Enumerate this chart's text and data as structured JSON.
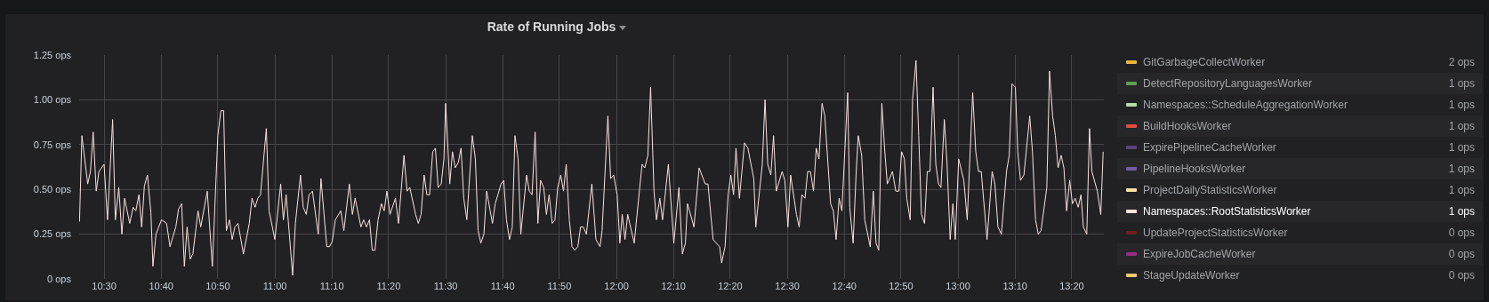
{
  "chart_data": {
    "type": "line",
    "title": "Rate of Running Jobs",
    "xlim": [
      10.427,
      13.427
    ],
    "xticks": [
      {
        "value": 10.5,
        "label": "10:30"
      },
      {
        "value": 10.667,
        "label": "10:40"
      },
      {
        "value": 10.833,
        "label": "10:50"
      },
      {
        "value": 11,
        "label": "11:00"
      },
      {
        "value": 11.167,
        "label": "11:10"
      },
      {
        "value": 11.333,
        "label": "11:20"
      },
      {
        "value": 11.5,
        "label": "11:30"
      },
      {
        "value": 11.667,
        "label": "11:40"
      },
      {
        "value": 11.833,
        "label": "11:50"
      },
      {
        "value": 12,
        "label": "12:00"
      },
      {
        "value": 12.167,
        "label": "12:10"
      },
      {
        "value": 12.333,
        "label": "12:20"
      },
      {
        "value": 12.5,
        "label": "12:30"
      },
      {
        "value": 12.667,
        "label": "12:40"
      },
      {
        "value": 12.833,
        "label": "12:50"
      },
      {
        "value": 13,
        "label": "13:00"
      },
      {
        "value": 13.167,
        "label": "13:10"
      },
      {
        "value": 13.333,
        "label": "13:20"
      }
    ],
    "ylim": [
      0,
      1.25
    ],
    "yticks": [
      {
        "value": 0,
        "label": "0 ops"
      },
      {
        "value": 0.25,
        "label": "0.25 ops"
      },
      {
        "value": 0.5,
        "label": "0.50 ops"
      },
      {
        "value": 0.75,
        "label": "0.75 ops"
      },
      {
        "value": 1,
        "label": "1.00 ops"
      },
      {
        "value": 1.25,
        "label": "1.25 ops"
      }
    ],
    "grid": true,
    "legend": "right",
    "annotations": [
      "2 ops",
      "1 ops",
      "1 ops",
      "1 ops",
      "1 ops",
      "1 ops",
      "1 ops",
      "1 ops",
      "0 ops",
      "0 ops",
      "0 ops"
    ],
    "series": [
      {
        "name": "GitGarbageCollectWorker",
        "color": "#eab839"
      },
      {
        "name": "DetectRepositoryLanguagesWorker",
        "color": "#629e51"
      },
      {
        "name": "Namespaces::ScheduleAggregationWorker",
        "color": "#b7dbab"
      },
      {
        "name": "BuildHooksWorker",
        "color": "#e24d42"
      },
      {
        "name": "ExpirePipelineCacheWorker",
        "color": "#584477"
      },
      {
        "name": "PipelineHooksWorker",
        "color": "#705da0"
      },
      {
        "name": "ProjectDailyStatisticsWorker",
        "color": "#f9e2a2"
      },
      {
        "name": "Namespaces::RootStatisticsWorker",
        "color": "#fce2de",
        "x": [
          10.428,
          10.435,
          10.452,
          10.46,
          10.468,
          10.477,
          10.485,
          10.5,
          10.51,
          10.525,
          10.533,
          10.543,
          10.552,
          10.56,
          10.575,
          10.585,
          10.593,
          10.602,
          10.61,
          10.618,
          10.627,
          10.637,
          10.643,
          10.652,
          10.668,
          10.683,
          10.693,
          10.71,
          10.718,
          10.727,
          10.735,
          10.743,
          10.752,
          10.76,
          10.775,
          10.783,
          10.802,
          10.817,
          10.833,
          10.842,
          10.85,
          10.858,
          10.867,
          10.875,
          10.883,
          10.892,
          10.908,
          10.925,
          10.933,
          10.942,
          10.95,
          10.958,
          10.975,
          10.983,
          11,
          11.017,
          11.025,
          11.033,
          11.052,
          11.06,
          11.075,
          11.083,
          11.092,
          11.1,
          11.11,
          11.127,
          11.135,
          11.152,
          11.16,
          11.168,
          11.177,
          11.193,
          11.202,
          11.218,
          11.227,
          11.235,
          11.252,
          11.26,
          11.268,
          11.277,
          11.285,
          11.293,
          11.302,
          11.312,
          11.32,
          11.328,
          11.337,
          11.353,
          11.362,
          11.378,
          11.387,
          11.395,
          11.412,
          11.42,
          11.428,
          11.437,
          11.445,
          11.453,
          11.462,
          11.47,
          11.478,
          11.487,
          11.495,
          11.5,
          11.512,
          11.52,
          11.528,
          11.537,
          11.545,
          11.553,
          11.562,
          11.578,
          11.587,
          11.595,
          11.603,
          11.612,
          11.62,
          11.637,
          11.645,
          11.653,
          11.662,
          11.67,
          11.678,
          11.687,
          11.695,
          11.703,
          11.712,
          11.72,
          11.737,
          11.745,
          11.753,
          11.762,
          11.77,
          11.778,
          11.787,
          11.795,
          11.803,
          11.812,
          11.82,
          11.828,
          11.837,
          11.845,
          11.853,
          11.862,
          11.87,
          11.878,
          11.887,
          11.895,
          11.903,
          11.912,
          11.928,
          11.94,
          11.952,
          11.958,
          11.975,
          11.983,
          11.992,
          12.002,
          12.01,
          12.017,
          12.025,
          12.033,
          12.052,
          12.075,
          12.083,
          12.092,
          12.1,
          12.11,
          12.117,
          12.127,
          12.135,
          12.152,
          12.168,
          12.183,
          12.193,
          12.202,
          12.208,
          12.227,
          12.242,
          12.26,
          12.268,
          12.283,
          12.302,
          12.308,
          12.318,
          12.327,
          12.335,
          12.343,
          12.35,
          12.36,
          12.375,
          12.385,
          12.402,
          12.408,
          12.427,
          12.435,
          12.443,
          12.452,
          12.46,
          12.468,
          12.485,
          12.493,
          12.502,
          12.51,
          12.527,
          12.535,
          12.543,
          12.552,
          12.56,
          12.568,
          12.577,
          12.585,
          12.593,
          12.602,
          12.61,
          12.627,
          12.635,
          12.643,
          12.652,
          12.66,
          12.677,
          12.683,
          12.693,
          12.702,
          12.708,
          12.718,
          12.727,
          12.743,
          12.752,
          12.76,
          12.768,
          12.777,
          12.785,
          12.793,
          12.808,
          12.818,
          12.827,
          12.835,
          12.843,
          12.85,
          12.86,
          12.867,
          12.877,
          12.885,
          12.893,
          12.902,
          12.91,
          12.918,
          12.927,
          12.935,
          12.943,
          12.95,
          12.96,
          12.968,
          12.977,
          12.985,
          12.992,
          13.002,
          13.017,
          13.027,
          13.043,
          13.052,
          13.06,
          13.068,
          13.085,
          13.1,
          13.108,
          13.117,
          13.127,
          13.142,
          13.15,
          13.158,
          13.168,
          13.175,
          13.183,
          13.193,
          13.21,
          13.218,
          13.227,
          13.235,
          13.243,
          13.26,
          13.268,
          13.277,
          13.285,
          13.293,
          13.302,
          13.31,
          13.318,
          13.327,
          13.335,
          13.343,
          13.352,
          13.36,
          13.367,
          13.377,
          13.385,
          13.392,
          13.408,
          13.418,
          13.425
        ],
        "values": [
          0.32,
          0.8,
          0.53,
          0.6,
          0.82,
          0.49,
          0.6,
          0.64,
          0.33,
          0.89,
          0.33,
          0.51,
          0.25,
          0.45,
          0.31,
          0.4,
          0.38,
          0.47,
          0.29,
          0.52,
          0.58,
          0.37,
          0.07,
          0.25,
          0.33,
          0.31,
          0.18,
          0.29,
          0.39,
          0.42,
          0.07,
          0.29,
          0.11,
          0.14,
          0.38,
          0.29,
          0.49,
          0.07,
          0.8,
          0.94,
          0.94,
          0.27,
          0.33,
          0.22,
          0.29,
          0.31,
          0.14,
          0.31,
          0.45,
          0.4,
          0.45,
          0.47,
          0.84,
          0.38,
          0.22,
          0.53,
          0.33,
          0.47,
          0.02,
          0.31,
          0.58,
          0.4,
          0.36,
          0.47,
          0.49,
          0.25,
          0.56,
          0.18,
          0.18,
          0.21,
          0.33,
          0.38,
          0.27,
          0.53,
          0.36,
          0.45,
          0.29,
          0.33,
          0.29,
          0.33,
          0.16,
          0.16,
          0.33,
          0.42,
          0.38,
          0.49,
          0.36,
          0.45,
          0.31,
          0.69,
          0.49,
          0.51,
          0.36,
          0.31,
          0.36,
          0.58,
          0.47,
          0.47,
          0.71,
          0.73,
          0.51,
          0.53,
          0.67,
          0.98,
          0.53,
          0.71,
          0.62,
          0.65,
          0.73,
          0.45,
          0.33,
          0.8,
          0.67,
          0.27,
          0.2,
          0.25,
          0.49,
          0.31,
          0.42,
          0.47,
          0.53,
          0.55,
          0.33,
          0.22,
          0.29,
          0.8,
          0.67,
          0.25,
          0.58,
          0.49,
          0.47,
          0.82,
          0.31,
          0.55,
          0.51,
          0.36,
          0.47,
          0.31,
          0.33,
          0.51,
          0.58,
          0.49,
          0.64,
          0.33,
          0.18,
          0.16,
          0.18,
          0.29,
          0.29,
          0.25,
          0.53,
          0.22,
          0.18,
          0.27,
          0.91,
          0.56,
          0.58,
          0.47,
          0.2,
          0.36,
          0.22,
          0.36,
          0.2,
          0.64,
          0.62,
          0.69,
          1.07,
          0.49,
          0.33,
          0.45,
          0.33,
          0.64,
          0.2,
          0.51,
          0.14,
          0.2,
          0.42,
          0.29,
          0.62,
          0.53,
          0.53,
          0.22,
          0.18,
          0.09,
          0.18,
          0.47,
          0.58,
          0.47,
          0.73,
          0.45,
          0.76,
          0.73,
          0.56,
          0.29,
          0.64,
          1.0,
          0.64,
          0.58,
          0.8,
          0.49,
          0.6,
          0.55,
          0.29,
          0.58,
          0.36,
          0.29,
          0.47,
          0.45,
          0.6,
          0.6,
          0.49,
          0.73,
          0.67,
          0.98,
          0.91,
          0.42,
          0.38,
          0.22,
          0.45,
          0.38,
          1.04,
          0.4,
          0.2,
          0.6,
          0.8,
          0.69,
          0.33,
          0.18,
          0.49,
          0.2,
          0.16,
          0.98,
          0.73,
          0.53,
          0.6,
          0.49,
          0.49,
          0.71,
          0.67,
          0.45,
          0.33,
          1.0,
          1.22,
          0.8,
          0.36,
          0.31,
          0.6,
          0.6,
          1.07,
          0.64,
          0.53,
          0.51,
          0.89,
          0.64,
          0.22,
          0.42,
          0.22,
          0.67,
          0.55,
          0.33,
          1.04,
          0.71,
          0.6,
          0.6,
          0.22,
          0.6,
          0.53,
          0.29,
          0.25,
          0.6,
          0.69,
          1.09,
          1.07,
          0.71,
          0.55,
          0.58,
          0.91,
          0.71,
          0.33,
          0.25,
          0.27,
          0.51,
          1.16,
          0.91,
          0.8,
          0.62,
          0.69,
          0.62,
          0.38,
          0.55,
          0.42,
          0.45,
          0.4,
          0.47,
          0.29,
          0.25,
          0.84,
          0.6,
          0.49,
          0.36,
          0.71
        ]
      },
      {
        "name": "UpdateProjectStatisticsWorker",
        "color": "#6d1f1f"
      },
      {
        "name": "ExpireJobCacheWorker",
        "color": "#962d82"
      },
      {
        "name": "StageUpdateWorker",
        "color": "#f2c96d"
      }
    ]
  }
}
